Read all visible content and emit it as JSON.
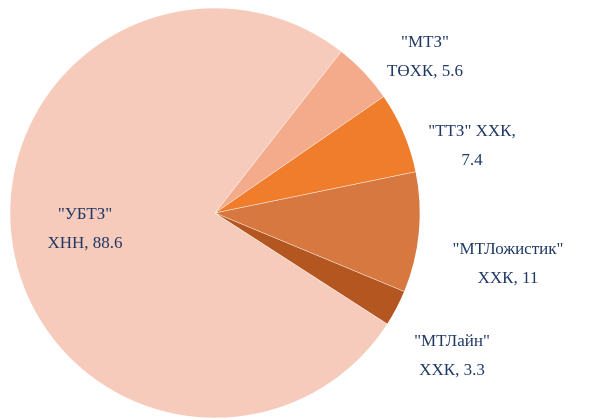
{
  "chart_data": {
    "type": "pie",
    "values": [
      5.6,
      7.4,
      11,
      3.3,
      88.6
    ],
    "value_labels": [
      [
        "\"МТЗ\"",
        "ТӨХК, 5.6"
      ],
      [
        "\"ТТЗ\" ХХК,",
        "7.4"
      ],
      [
        "\"МТЛожистик\"",
        "ХХК, 11"
      ],
      [
        "\"МТЛайн\"",
        "ХХК, 3.3"
      ],
      [
        "\"УБТЗ\"",
        "ХНН, 88.6"
      ]
    ],
    "colors": [
      "#f3ab8c",
      "#f07d2c",
      "#d6783f",
      "#b4561f",
      "#f6cbbb"
    ]
  }
}
